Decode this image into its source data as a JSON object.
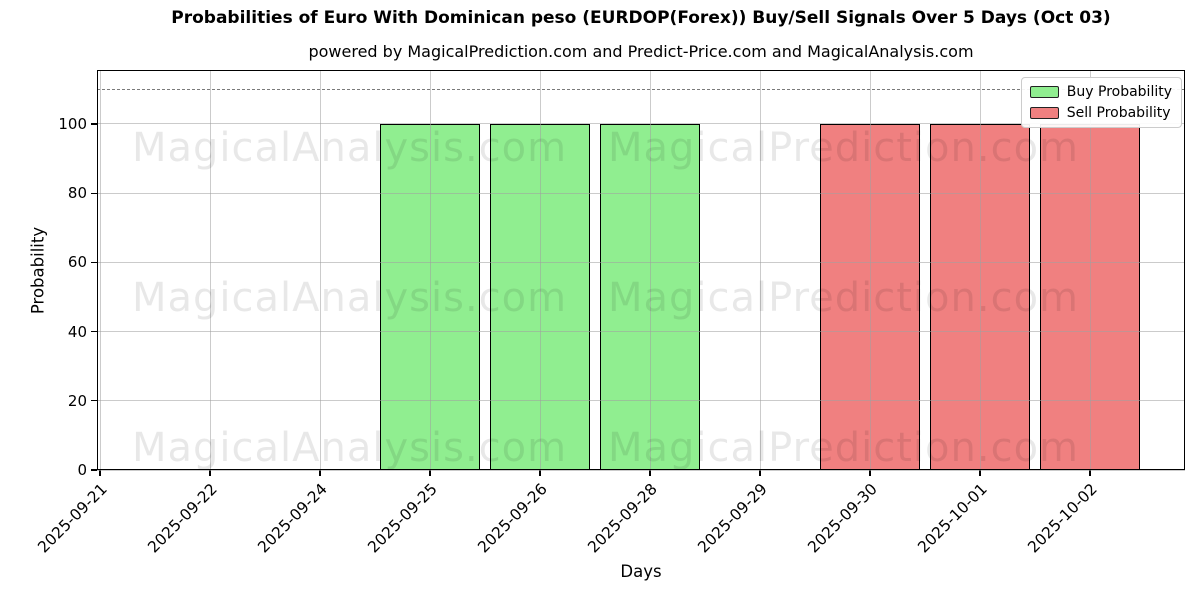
{
  "chart_data": {
    "type": "bar",
    "title": "Probabilities of Euro With Dominican peso (EURDOP(Forex)) Buy/Sell Signals Over 5 Days (Oct 03)",
    "subtitle": "powered by MagicalPrediction.com and Predict-Price.com and MagicalAnalysis.com",
    "xlabel": "Days",
    "ylabel": "Probability",
    "categories": [
      "2025-09-21",
      "2025-09-22",
      "2025-09-24",
      "2025-09-25",
      "2025-09-26",
      "2025-09-28",
      "2025-09-29",
      "2025-09-30",
      "2025-10-01",
      "2025-10-02"
    ],
    "series": [
      {
        "name": "Buy Probability",
        "color": "#90ee90",
        "values": [
          0,
          0,
          0,
          100,
          100,
          100,
          0,
          0,
          0,
          0
        ]
      },
      {
        "name": "Sell Probability",
        "color": "#f08080",
        "values": [
          0,
          0,
          0,
          0,
          0,
          0,
          0,
          100,
          100,
          100
        ]
      }
    ],
    "yticks": [
      0,
      20,
      40,
      60,
      80,
      100
    ],
    "ylim": [
      0,
      115.6
    ],
    "threshold_line_y": 110,
    "grid": true,
    "legend_position": "upper right",
    "bar_edge_color": "#000000",
    "watermarks": [
      "MagicalAnalysis.com",
      "MagicalPrediction.com"
    ]
  }
}
